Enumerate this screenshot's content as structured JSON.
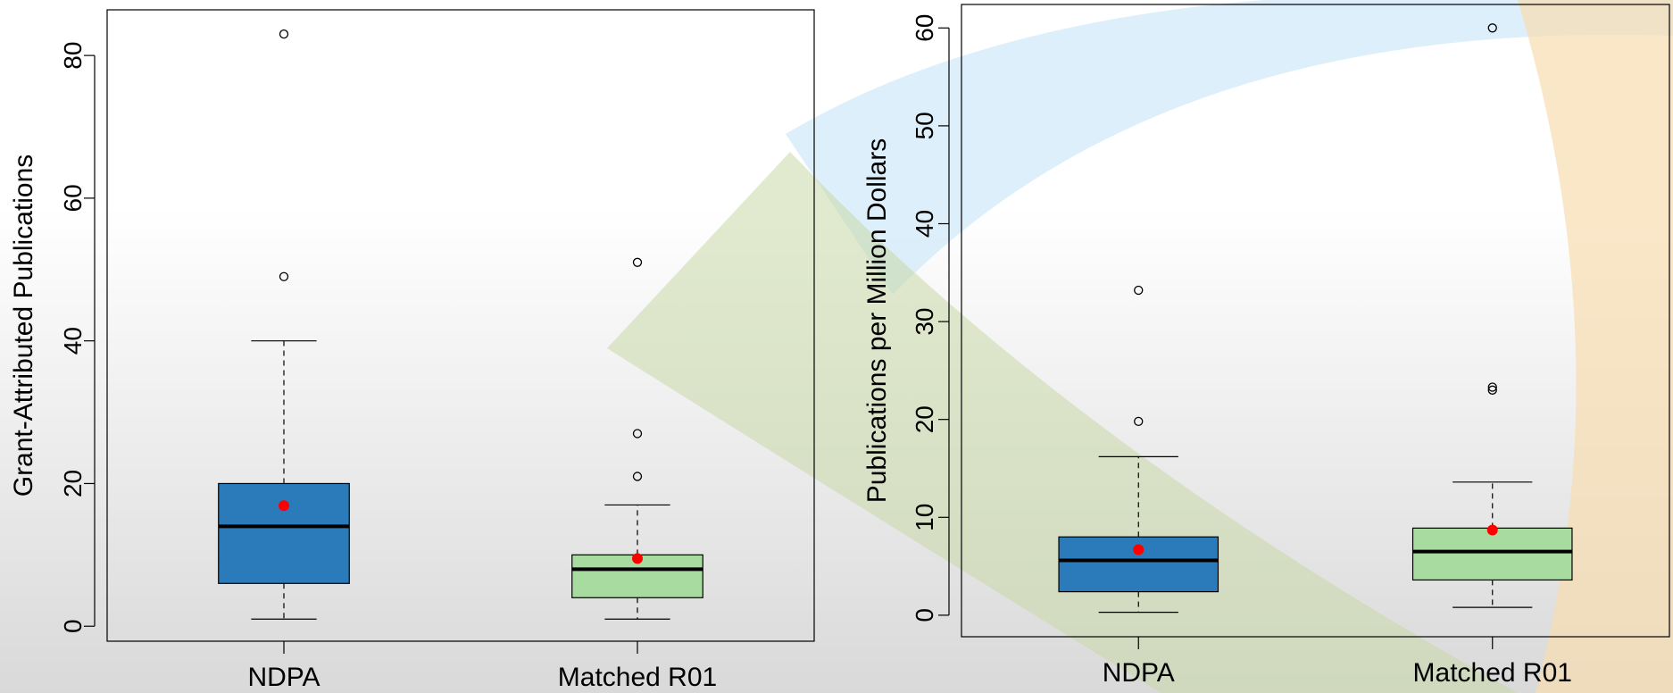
{
  "chart_data": [
    {
      "type": "box",
      "ylabel": "Grant-Attributed Publications",
      "categories": [
        "NDPA",
        "Matched R01"
      ],
      "ylim": [
        -2.1,
        86.4
      ],
      "yticks": [
        0,
        20,
        40,
        60,
        80
      ],
      "mean_color": "#ff0000",
      "boxes": [
        {
          "color": "#2b7bba",
          "whislo": 1,
          "q1": 6,
          "med": 14,
          "q3": 20,
          "whishi": 40,
          "mean": 16.9,
          "fliers": [
            49,
            83
          ]
        },
        {
          "color": "#a8dba0",
          "whislo": 1,
          "q1": 4,
          "med": 8,
          "q3": 10,
          "whishi": 17,
          "mean": 9.5,
          "fliers": [
            21,
            27,
            51
          ]
        }
      ]
    },
    {
      "type": "box",
      "ylabel": "Publications per Million Dollars",
      "categories": [
        "NDPA",
        "Matched R01"
      ],
      "ylim": [
        -2.2,
        62.4
      ],
      "yticks": [
        0,
        10,
        20,
        30,
        40,
        50,
        60
      ],
      "mean_color": "#ff0000",
      "boxes": [
        {
          "color": "#2b7bba",
          "whislo": 0.3,
          "q1": 2.4,
          "med": 5.6,
          "q3": 8,
          "whishi": 16.2,
          "mean": 6.7,
          "fliers": [
            19.8,
            33.2
          ]
        },
        {
          "color": "#a8dba0",
          "whislo": 0.8,
          "q1": 3.6,
          "med": 6.5,
          "q3": 8.9,
          "whishi": 13.6,
          "mean": 8.7,
          "fliers": [
            23,
            23.3,
            60
          ]
        }
      ]
    }
  ]
}
